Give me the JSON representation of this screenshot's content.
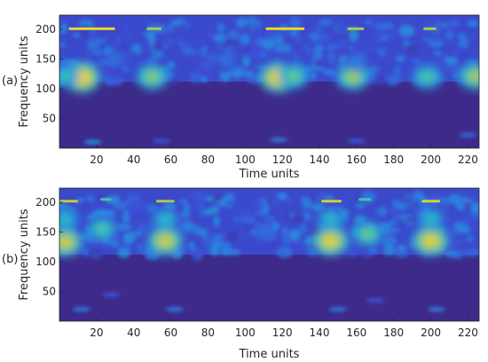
{
  "colors": {
    "background": "#3e2a8a",
    "colormap": [
      "#3e2a8a",
      "#3b4fd8",
      "#2a86e0",
      "#1fb6d2",
      "#57cc8e",
      "#c8c435",
      "#fbd925"
    ]
  },
  "chart_data": [
    {
      "type": "heatmap",
      "panel_label": "(a)",
      "xlabel": "Time units",
      "ylabel": "Frequency units",
      "xlim": [
        0,
        226
      ],
      "ylim": [
        0,
        224
      ],
      "xticks": [
        20,
        40,
        60,
        80,
        100,
        120,
        140,
        160,
        180,
        200,
        220
      ],
      "yticks": [
        50,
        100,
        150,
        200
      ],
      "band_boundary_y": 112,
      "hotspots": [
        {
          "x": 12,
          "y": 119,
          "intensity": 1.0
        },
        {
          "x": 3,
          "y": 122,
          "intensity": 0.6
        },
        {
          "x": 50,
          "y": 120,
          "intensity": 0.75
        },
        {
          "x": 118,
          "y": 119,
          "intensity": 1.0
        },
        {
          "x": 126,
          "y": 121,
          "intensity": 0.7
        },
        {
          "x": 158,
          "y": 120,
          "intensity": 0.8
        },
        {
          "x": 198,
          "y": 120,
          "intensity": 0.65
        },
        {
          "x": 224,
          "y": 121,
          "intensity": 0.8
        },
        {
          "x": 160,
          "y": 145,
          "intensity": 0.35
        },
        {
          "x": 90,
          "y": 150,
          "intensity": 0.3
        },
        {
          "x": 30,
          "y": 150,
          "intensity": 0.3
        }
      ],
      "top_streaks": [
        {
          "x0": 5,
          "x1": 30,
          "y": 201,
          "intensity": 0.95
        },
        {
          "x0": 47,
          "x1": 55,
          "y": 201,
          "intensity": 0.8
        },
        {
          "x0": 111,
          "x1": 132,
          "y": 201,
          "intensity": 0.95
        },
        {
          "x0": 155,
          "x1": 164,
          "y": 201,
          "intensity": 0.8
        },
        {
          "x0": 196,
          "x1": 203,
          "y": 201,
          "intensity": 0.8
        }
      ],
      "low_features": [
        {
          "x": 18,
          "y": 10,
          "intensity": 0.35
        },
        {
          "x": 118,
          "y": 14,
          "intensity": 0.3
        },
        {
          "x": 55,
          "y": 12,
          "intensity": 0.18
        },
        {
          "x": 160,
          "y": 12,
          "intensity": 0.2
        },
        {
          "x": 220,
          "y": 22,
          "intensity": 0.25
        }
      ]
    },
    {
      "type": "heatmap",
      "panel_label": "(b)",
      "xlabel": "Time units",
      "ylabel": "Frequency units",
      "xlim": [
        0,
        226
      ],
      "ylim": [
        0,
        224
      ],
      "xticks": [
        20,
        40,
        60,
        80,
        100,
        120,
        140,
        160,
        180,
        200,
        220
      ],
      "yticks": [
        50,
        100,
        150,
        200
      ],
      "band_boundary_y": 112,
      "hotspots": [
        {
          "x": 3,
          "y": 133,
          "intensity": 0.9
        },
        {
          "x": 3,
          "y": 172,
          "intensity": 0.55
        },
        {
          "x": 23,
          "y": 155,
          "intensity": 0.65
        },
        {
          "x": 57,
          "y": 135,
          "intensity": 0.9
        },
        {
          "x": 57,
          "y": 172,
          "intensity": 0.55
        },
        {
          "x": 146,
          "y": 135,
          "intensity": 0.95
        },
        {
          "x": 146,
          "y": 172,
          "intensity": 0.55
        },
        {
          "x": 166,
          "y": 147,
          "intensity": 0.7
        },
        {
          "x": 200,
          "y": 135,
          "intensity": 0.95
        },
        {
          "x": 200,
          "y": 172,
          "intensity": 0.55
        },
        {
          "x": 110,
          "y": 150,
          "intensity": 0.3
        }
      ],
      "top_streaks": [
        {
          "x0": 0,
          "x1": 10,
          "y": 202,
          "intensity": 0.85
        },
        {
          "x0": 22,
          "x1": 28,
          "y": 205,
          "intensity": 0.6
        },
        {
          "x0": 52,
          "x1": 62,
          "y": 202,
          "intensity": 0.8
        },
        {
          "x0": 141,
          "x1": 152,
          "y": 202,
          "intensity": 0.9
        },
        {
          "x0": 161,
          "x1": 168,
          "y": 205,
          "intensity": 0.6
        },
        {
          "x0": 195,
          "x1": 205,
          "y": 202,
          "intensity": 0.9
        }
      ],
      "low_features": [
        {
          "x": 12,
          "y": 20,
          "intensity": 0.3
        },
        {
          "x": 62,
          "y": 20,
          "intensity": 0.3
        },
        {
          "x": 150,
          "y": 20,
          "intensity": 0.3
        },
        {
          "x": 203,
          "y": 20,
          "intensity": 0.3
        },
        {
          "x": 28,
          "y": 45,
          "intensity": 0.18
        },
        {
          "x": 170,
          "y": 35,
          "intensity": 0.18
        }
      ]
    }
  ]
}
